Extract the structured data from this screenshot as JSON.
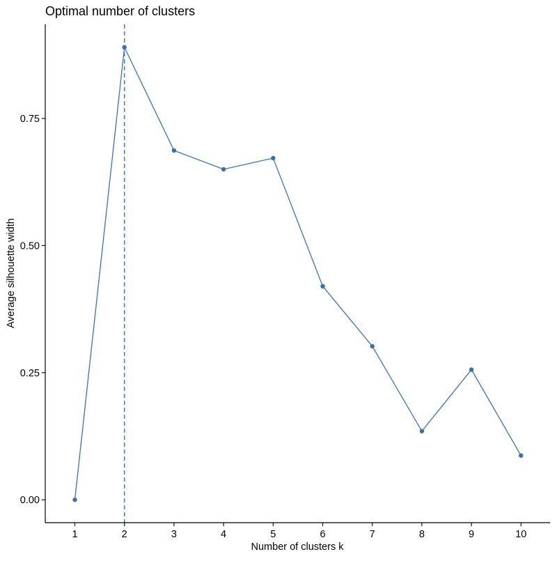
{
  "chart_data": {
    "type": "line",
    "title": "Optimal number of clusters",
    "xlabel": "Number of clusters k",
    "ylabel": "Average silhouette width",
    "categories": [
      "1",
      "2",
      "3",
      "4",
      "5",
      "6",
      "7",
      "8",
      "9",
      "10"
    ],
    "values": [
      0.0,
      0.89,
      0.687,
      0.65,
      0.672,
      0.42,
      0.302,
      0.135,
      0.256,
      0.087
    ],
    "yticks": [
      0.0,
      0.25,
      0.5,
      0.75
    ],
    "ytick_labels": [
      "0.00",
      "0.25",
      "0.50",
      "0.75"
    ],
    "ylim": [
      -0.045,
      0.935
    ],
    "optimal_k": "2",
    "grid": false,
    "colors": {
      "line": "#4a7ab4",
      "point": "#3e6ea9",
      "axis": "#000000"
    }
  }
}
